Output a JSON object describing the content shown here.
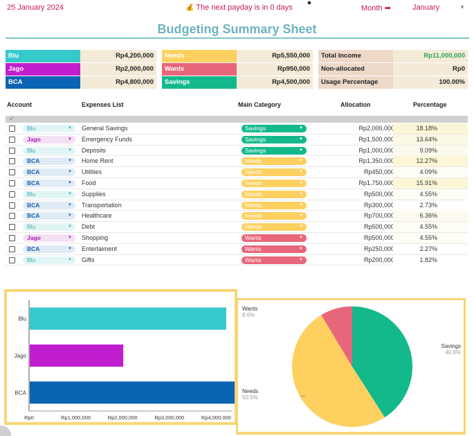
{
  "header": {
    "date": "25 January 2024",
    "payday_icon": "money-bag-icon",
    "payday_text": "The next payday is in 0 days",
    "period_label": "Month ➡",
    "month_value": "January"
  },
  "title": "Budgeting Summary Sheet",
  "accounts_summary": [
    {
      "name": "Blu",
      "amount": "Rp4,200,000"
    },
    {
      "name": "Jago",
      "amount": "Rp2,000,000"
    },
    {
      "name": "BCA",
      "amount": "Rp4,800,000"
    }
  ],
  "category_summary": [
    {
      "name": "Needs",
      "amount": "Rp5,550,000"
    },
    {
      "name": "Wants",
      "amount": "Rp950,000"
    },
    {
      "name": "Savings",
      "amount": "Rp4,500,000"
    }
  ],
  "income_summary": [
    {
      "name": "Total Income",
      "amount": "Rp11,000,000"
    },
    {
      "name": "Non-allocated",
      "amount": "Rp0"
    },
    {
      "name": "Usage Percentage",
      "amount": "100.00%"
    }
  ],
  "table": {
    "headers": [
      "Account",
      "Expenses List",
      "Main Category",
      "Allocation",
      "Percentage"
    ],
    "check_symbol": "✓",
    "rows": [
      {
        "account": "Blu",
        "expense": "General Savings",
        "category": "Savings",
        "allocation": "Rp2,000,000",
        "percentage": "18.18%"
      },
      {
        "account": "Jago",
        "expense": "Emergency Funds",
        "category": "Savings",
        "allocation": "Rp1,500,000",
        "percentage": "13.64%"
      },
      {
        "account": "Blu",
        "expense": "Deposits",
        "category": "Savings",
        "allocation": "Rp1,000,000",
        "percentage": "9.09%"
      },
      {
        "account": "BCA",
        "expense": "Home Rent",
        "category": "Needs",
        "allocation": "Rp1,350,000",
        "percentage": "12.27%"
      },
      {
        "account": "BCA",
        "expense": "Utilities",
        "category": "Needs",
        "allocation": "Rp450,000",
        "percentage": "4.09%"
      },
      {
        "account": "BCA",
        "expense": "Food",
        "category": "Needs",
        "allocation": "Rp1,750,000",
        "percentage": "15.91%"
      },
      {
        "account": "Blu",
        "expense": "Supplies",
        "category": "Needs",
        "allocation": "Rp500,000",
        "percentage": "4.55%"
      },
      {
        "account": "BCA",
        "expense": "Transportation",
        "category": "Needs",
        "allocation": "Rp300,000",
        "percentage": "2.73%"
      },
      {
        "account": "BCA",
        "expense": "Healthcare",
        "category": "Needs",
        "allocation": "Rp700,000",
        "percentage": "6.36%"
      },
      {
        "account": "Blu",
        "expense": "Debt",
        "category": "Needs",
        "allocation": "Rp500,000",
        "percentage": "4.55%"
      },
      {
        "account": "Jago",
        "expense": "Shopping",
        "category": "Wants",
        "allocation": "Rp500,000",
        "percentage": "4.55%"
      },
      {
        "account": "BCA",
        "expense": "Entertaiment",
        "category": "Wants",
        "allocation": "Rp250,000",
        "percentage": "2.27%"
      },
      {
        "account": "Blu",
        "expense": "Gifts",
        "category": "Wants",
        "allocation": "Rp200,000",
        "percentage": "1.82%"
      }
    ]
  },
  "colors": {
    "blu": "#35c9cc",
    "jago": "#c11ed0",
    "bca": "#0a63b3",
    "needs": "#fdd060",
    "wants": "#e8667a",
    "savings": "#13b98a"
  },
  "chart_data": [
    {
      "type": "bar",
      "orientation": "horizontal",
      "categories": [
        "Blu",
        "Jago",
        "BCA"
      ],
      "values": [
        4200000,
        2000000,
        4800000
      ],
      "colors": [
        "#35c9cc",
        "#c11ed0",
        "#0a63b3"
      ],
      "xlim": [
        0,
        5000000
      ],
      "xticks": [
        0,
        1000000,
        2000000,
        3000000,
        4000000
      ],
      "xtick_labels": [
        "Rp0",
        "Rp1,000,000",
        "Rp2,000,000",
        "Rp3,000,000",
        "Rp4,000,000"
      ]
    },
    {
      "type": "pie",
      "labels": [
        "Savings",
        "Needs",
        "Wants"
      ],
      "values": [
        40.9,
        50.5,
        8.6
      ],
      "value_labels": [
        "40.9%",
        "50.5%",
        "8.6%"
      ],
      "colors": [
        "#13b98a",
        "#fdd060",
        "#e8667a"
      ]
    }
  ]
}
